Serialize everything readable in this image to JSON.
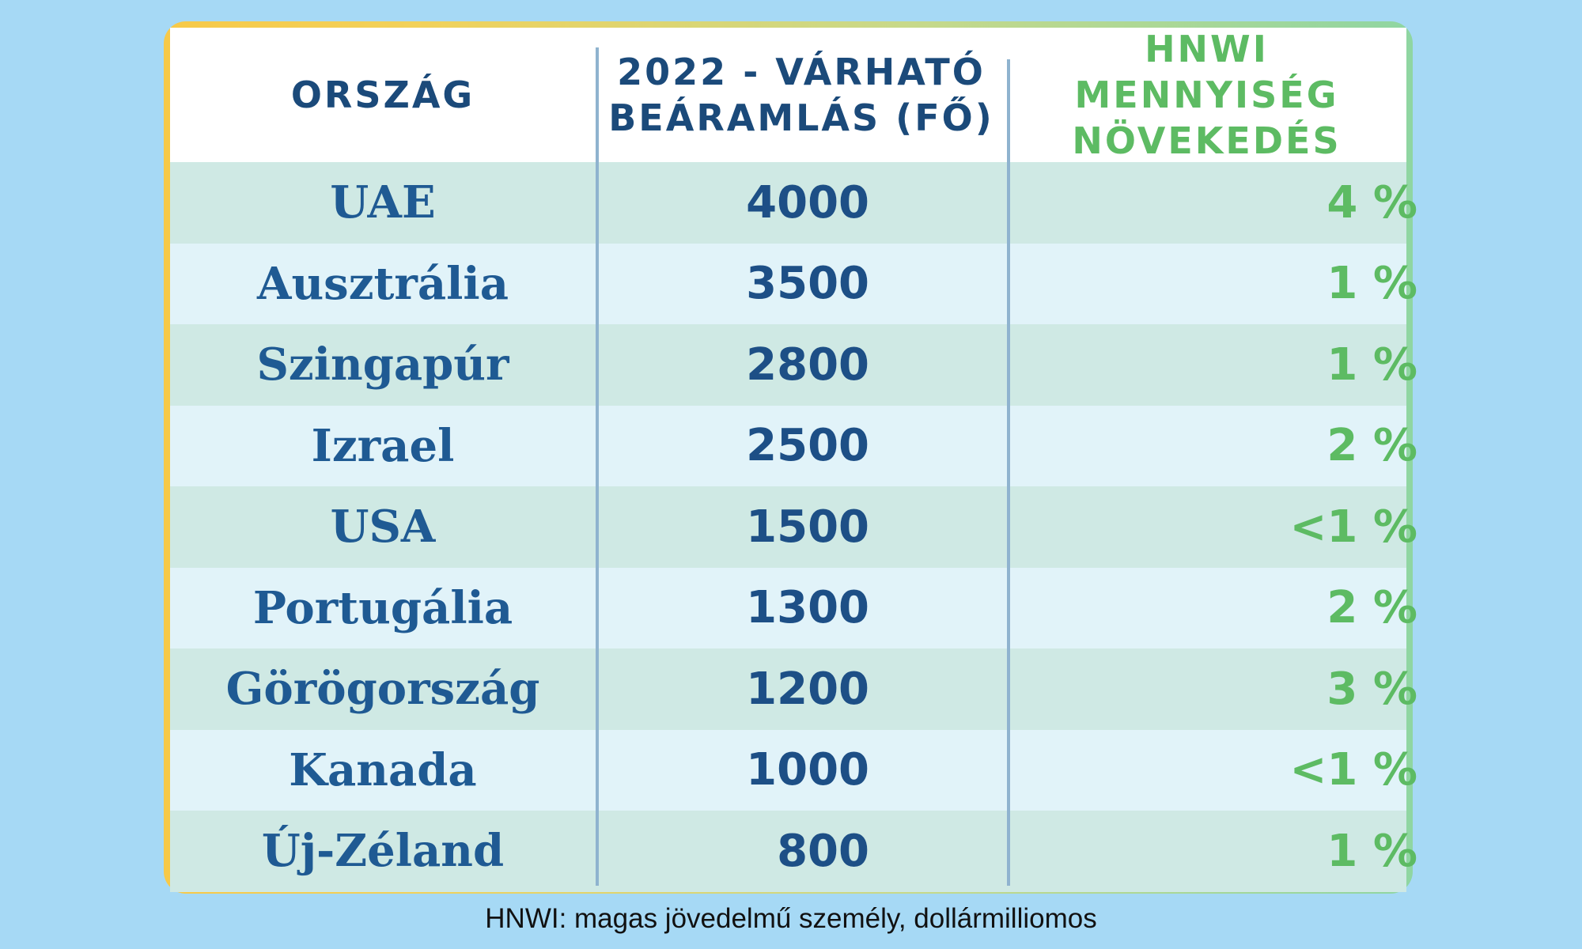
{
  "table": {
    "headers": {
      "country": "ORSZÁG",
      "inflow": "2022 - VÁRHATÓ\nBEÁRAMLÁS (FŐ)",
      "growth": "HNWI MENNYISÉG\nNÖVEKEDÉS"
    },
    "rows": [
      {
        "country": "UAE",
        "inflow": "4000",
        "growth": "4 %"
      },
      {
        "country": "Ausztrália",
        "inflow": "3500",
        "growth": "1 %"
      },
      {
        "country": "Szingapúr",
        "inflow": "2800",
        "growth": "1 %"
      },
      {
        "country": "Izrael",
        "inflow": "2500",
        "growth": "2 %"
      },
      {
        "country": "USA",
        "inflow": "1500",
        "growth": "<1 %"
      },
      {
        "country": "Portugália",
        "inflow": "1300",
        "growth": "2 %"
      },
      {
        "country": "Görögország",
        "inflow": "1200",
        "growth": "3 %"
      },
      {
        "country": "Kanada",
        "inflow": "1000",
        "growth": "<1 %"
      },
      {
        "country": "Új-Zéland",
        "inflow": "800",
        "growth": "1 %"
      }
    ]
  },
  "footnote": "HNWI: magas jövedelmű személy, dollármilliomos",
  "colors": {
    "background": "#a6d9f5",
    "header_text": "#1b4a7a",
    "accent_green": "#5dbb63",
    "row_odd": "#cfe9e4",
    "row_even": "#e1f3f9",
    "body_text": "#1f5a93"
  }
}
